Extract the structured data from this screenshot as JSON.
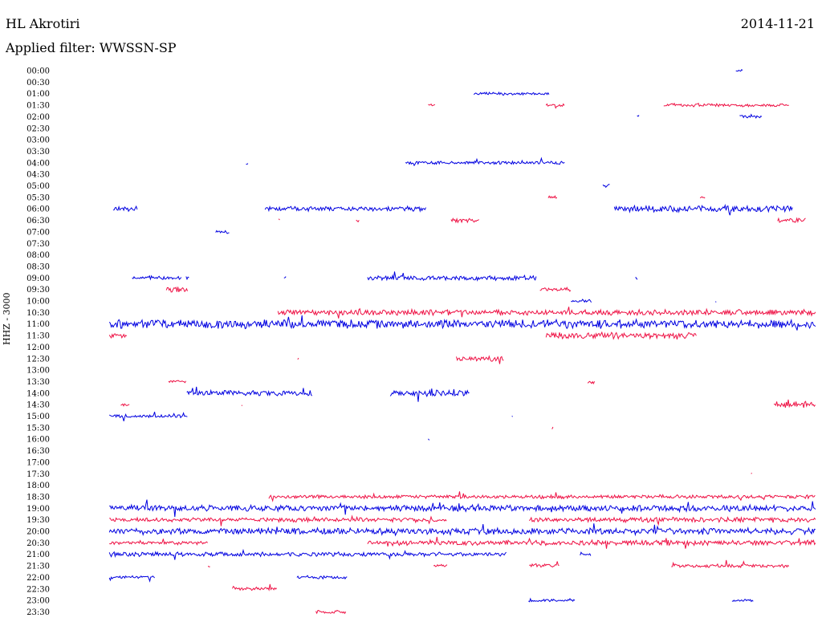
{
  "header": {
    "station": "HL Akrotiri",
    "date": "2014-11-21",
    "filter": "Applied filter: WWSSN-SP"
  },
  "chart_data": {
    "type": "line",
    "title": "HL Akrotiri",
    "subtitle": "Applied filter: WWSSN-SP",
    "ylabel": "HHZ - 3000",
    "colors": {
      "odd_row": "#0000e0",
      "even_row": "#ee1144"
    },
    "grid": false,
    "rows": [
      {
        "time": "00:00",
        "segments": [
          [
            0.895,
            0.905,
            0.2
          ]
        ]
      },
      {
        "time": "00:30",
        "segments": []
      },
      {
        "time": "01:00",
        "segments": [
          [
            0.55,
            0.65,
            0.3
          ]
        ]
      },
      {
        "time": "01:30",
        "segments": [
          [
            0.49,
            0.5,
            0.4
          ],
          [
            0.645,
            0.67,
            0.4
          ],
          [
            0.8,
            0.965,
            0.4
          ]
        ]
      },
      {
        "time": "02:00",
        "segments": [
          [
            0.765,
            0.768,
            0.3
          ],
          [
            0.9,
            0.93,
            0.3
          ]
        ]
      },
      {
        "time": "02:30",
        "segments": []
      },
      {
        "time": "03:00",
        "segments": []
      },
      {
        "time": "03:30",
        "segments": []
      },
      {
        "time": "04:00",
        "segments": [
          [
            0.25,
            0.253,
            0.6
          ],
          [
            0.46,
            0.67,
            0.45
          ]
        ]
      },
      {
        "time": "04:30",
        "segments": []
      },
      {
        "time": "05:00",
        "segments": [
          [
            0.72,
            0.73,
            0.5
          ]
        ]
      },
      {
        "time": "05:30",
        "segments": [
          [
            0.648,
            0.66,
            0.3
          ],
          [
            0.848,
            0.855,
            0.3
          ]
        ]
      },
      {
        "time": "06:00",
        "segments": [
          [
            0.075,
            0.107,
            0.9
          ],
          [
            0.275,
            0.487,
            1.0
          ],
          [
            0.735,
            0.97,
            1.6
          ]
        ]
      },
      {
        "time": "06:30",
        "segments": [
          [
            0.293,
            0.295,
            0.4
          ],
          [
            0.395,
            0.4,
            0.5
          ],
          [
            0.52,
            0.558,
            0.7
          ],
          [
            0.95,
            0.987,
            0.7
          ]
        ]
      },
      {
        "time": "07:00",
        "segments": [
          [
            0.21,
            0.228,
            0.4
          ]
        ]
      },
      {
        "time": "07:30",
        "segments": []
      },
      {
        "time": "08:00",
        "segments": []
      },
      {
        "time": "08:30",
        "segments": []
      },
      {
        "time": "09:00",
        "segments": [
          [
            0.1,
            0.165,
            0.6
          ],
          [
            0.171,
            0.176,
            0.5
          ],
          [
            0.3,
            0.303,
            0.4
          ],
          [
            0.41,
            0.632,
            1.0
          ],
          [
            0.763,
            0.766,
            0.4
          ]
        ]
      },
      {
        "time": "09:30",
        "segments": [
          [
            0.145,
            0.173,
            1.5
          ],
          [
            0.637,
            0.678,
            0.6
          ]
        ]
      },
      {
        "time": "10:00",
        "segments": [
          [
            0.678,
            0.705,
            0.4
          ],
          [
            0.868,
            0.87,
            0.3
          ]
        ]
      },
      {
        "time": "10:30",
        "segments": [
          [
            0.292,
            1.0,
            1.3
          ]
        ]
      },
      {
        "time": "11:00",
        "segments": [
          [
            0.07,
            1.0,
            2.4
          ]
        ]
      },
      {
        "time": "11:30",
        "segments": [
          [
            0.07,
            0.093,
            0.9
          ],
          [
            0.645,
            0.843,
            1.6
          ]
        ]
      },
      {
        "time": "12:00",
        "segments": []
      },
      {
        "time": "12:30",
        "segments": [
          [
            0.318,
            0.32,
            0.4
          ],
          [
            0.527,
            0.59,
            1.1
          ]
        ]
      },
      {
        "time": "13:00",
        "segments": []
      },
      {
        "time": "13:30",
        "segments": [
          [
            0.148,
            0.171,
            0.3
          ],
          [
            0.7,
            0.71,
            1.3
          ]
        ]
      },
      {
        "time": "14:00",
        "segments": [
          [
            0.172,
            0.338,
            1.2
          ],
          [
            0.44,
            0.545,
            1.5
          ]
        ]
      },
      {
        "time": "14:30",
        "segments": [
          [
            0.085,
            0.097,
            0.4
          ],
          [
            0.244,
            0.246,
            0.4
          ],
          [
            0.945,
            1.0,
            1.5
          ]
        ]
      },
      {
        "time": "15:00",
        "segments": [
          [
            0.07,
            0.173,
            0.5
          ],
          [
            0.6,
            0.602,
            0.5
          ]
        ]
      },
      {
        "time": "15:30",
        "segments": [
          [
            0.653,
            0.655,
            0.4
          ]
        ]
      },
      {
        "time": "16:00",
        "segments": [
          [
            0.49,
            0.492,
            0.4
          ]
        ]
      },
      {
        "time": "16:30",
        "segments": []
      },
      {
        "time": "17:00",
        "segments": []
      },
      {
        "time": "17:30",
        "segments": [
          [
            0.915,
            0.917,
            0.2
          ]
        ]
      },
      {
        "time": "18:00",
        "segments": []
      },
      {
        "time": "18:30",
        "segments": [
          [
            0.28,
            1.0,
            0.6
          ]
        ]
      },
      {
        "time": "19:00",
        "segments": [
          [
            0.07,
            1.0,
            1.5
          ]
        ]
      },
      {
        "time": "19:30",
        "segments": [
          [
            0.07,
            0.515,
            0.7
          ],
          [
            0.623,
            1.0,
            1.1
          ]
        ]
      },
      {
        "time": "20:00",
        "segments": [
          [
            0.07,
            1.0,
            1.6
          ]
        ]
      },
      {
        "time": "20:30",
        "segments": [
          [
            0.07,
            0.2,
            0.4
          ],
          [
            0.41,
            1.0,
            1.1
          ]
        ]
      },
      {
        "time": "21:00",
        "segments": [
          [
            0.07,
            0.593,
            0.8
          ],
          [
            0.69,
            0.705,
            0.3
          ]
        ]
      },
      {
        "time": "21:30",
        "segments": [
          [
            0.2,
            0.203,
            0.3
          ],
          [
            0.497,
            0.515,
            0.3
          ],
          [
            0.623,
            0.663,
            1.0
          ],
          [
            0.81,
            0.965,
            0.5
          ]
        ]
      },
      {
        "time": "22:00",
        "segments": [
          [
            0.07,
            0.13,
            0.4
          ],
          [
            0.317,
            0.383,
            0.3
          ]
        ]
      },
      {
        "time": "22:30",
        "segments": [
          [
            0.232,
            0.291,
            0.4
          ]
        ]
      },
      {
        "time": "23:00",
        "segments": [
          [
            0.622,
            0.683,
            0.4
          ],
          [
            0.89,
            0.918,
            0.4
          ]
        ]
      },
      {
        "time": "23:30",
        "segments": [
          [
            0.342,
            0.382,
            0.5
          ]
        ]
      }
    ]
  }
}
